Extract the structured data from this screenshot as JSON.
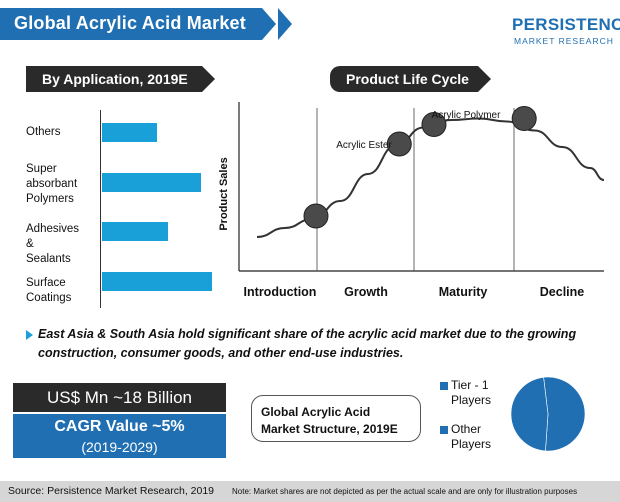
{
  "title": "Global Acrylic Acid Market",
  "logo": {
    "main": "PERSISTENCE",
    "sub": "MARKET RESEARCH"
  },
  "application_section": {
    "header": "By Application, 2019E"
  },
  "plc_section": {
    "header": "Product Life Cycle",
    "ylabel": "Product Sales"
  },
  "note": "East Asia & South Asia hold significant share of the acrylic acid market due to the growing construction, consumer goods, and other end-use industries.",
  "market_size": "US$ Mn ~18 Billion",
  "cagr": {
    "label": "CAGR Value ~5%",
    "period": "(2019-2029)"
  },
  "structure": {
    "title_line1": "Global Acrylic Acid",
    "title_line2": "Market Structure, 2019E"
  },
  "footer": {
    "source": "Source: Persistence Market Research, 2019",
    "note": "Note: Market shares are not depicted as per the actual scale and are only for illustration purposes"
  },
  "colors": {
    "brand_blue": "#1f6fb2",
    "bar_blue": "#1aa0d8",
    "dark": "#2a2a2a"
  },
  "chart_data": [
    {
      "type": "bar",
      "orientation": "horizontal",
      "title": "By Application, 2019E",
      "categories": [
        "Others",
        "Super absorbant Polymers",
        "Adhesives & Sealants",
        "Surface Coatings"
      ],
      "category_lines": [
        [
          "Others"
        ],
        [
          "Super",
          "absorbant",
          "Polymers"
        ],
        [
          "Adhesives &",
          "Sealants"
        ],
        [
          "Surface",
          "Coatings"
        ]
      ],
      "values": [
        0.5,
        0.9,
        0.6,
        1.0
      ],
      "value_scale": "relative (no axis printed)"
    },
    {
      "type": "line",
      "title": "Product Life Cycle",
      "ylabel": "Product Sales",
      "stages": [
        "Introduction",
        "Growth",
        "Maturity",
        "Decline"
      ],
      "annotations": [
        "Acrylic Ester",
        "Acrylic Polymer"
      ],
      "curve_x": [
        0,
        0.08,
        0.16,
        0.24,
        0.32,
        0.4,
        0.48,
        0.56,
        0.64,
        0.72,
        0.8,
        0.88,
        0.96,
        1.0
      ],
      "curve_y": [
        0.14,
        0.2,
        0.26,
        0.38,
        0.56,
        0.75,
        0.87,
        0.92,
        0.93,
        0.91,
        0.85,
        0.74,
        0.6,
        0.52
      ],
      "markers": [
        {
          "x": 0.17,
          "y": 0.28
        },
        {
          "x": 0.41,
          "y": 0.76
        },
        {
          "x": 0.51,
          "y": 0.89,
          "label": "Acrylic Ester"
        },
        {
          "x": 0.77,
          "y": 0.93,
          "label": "Acrylic Polymer"
        }
      ],
      "grid": false
    },
    {
      "type": "pie",
      "title": "Global Acrylic Acid Market Structure, 2019E",
      "labels": [
        "Tier - 1 Players",
        "Other Players"
      ],
      "label_lines": [
        [
          "Tier - 1",
          "Players"
        ],
        [
          "Other",
          "Players"
        ]
      ],
      "values": [
        53,
        47
      ],
      "colors": [
        "#1f6fb2",
        "#1f6fb2"
      ]
    }
  ]
}
